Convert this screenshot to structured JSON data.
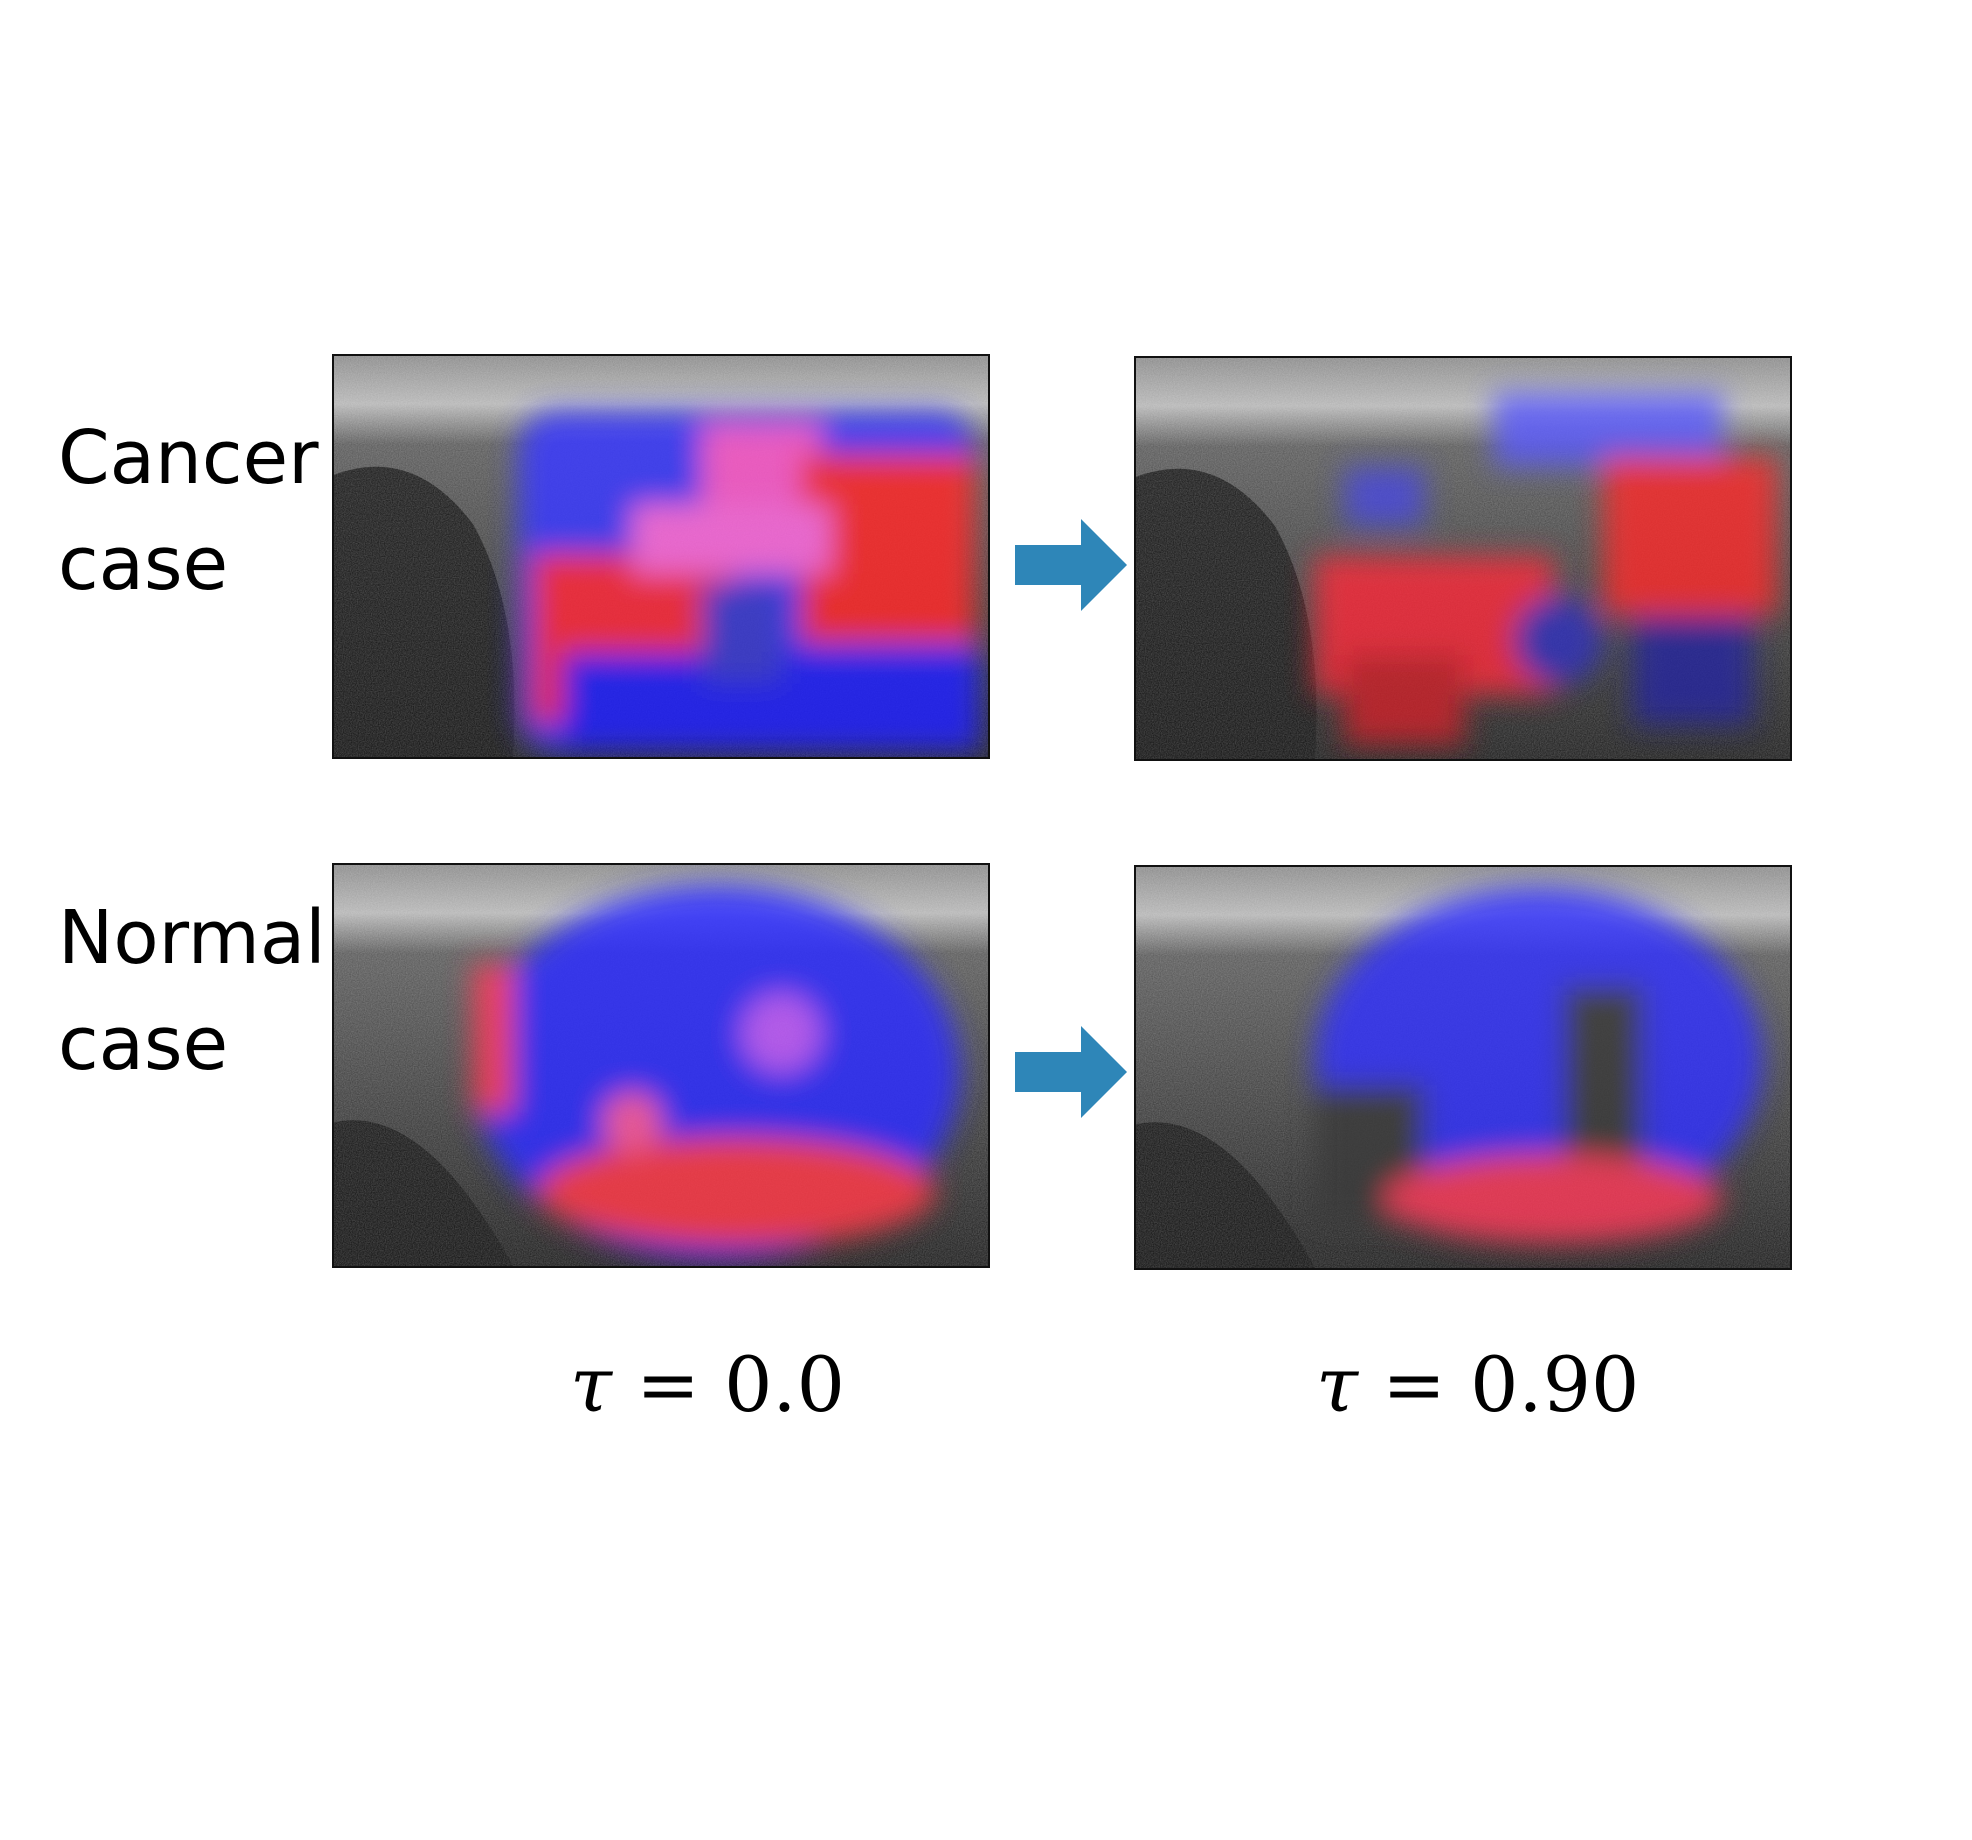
{
  "rows": [
    {
      "label_line1": "Cancer",
      "label_line2": "case"
    },
    {
      "label_line1": "Normal",
      "label_line2": "case"
    }
  ],
  "columns": [
    {
      "symbol": "τ",
      "equals": "=",
      "value": "0.0"
    },
    {
      "symbol": "τ",
      "equals": "=",
      "value": "0.90"
    }
  ],
  "colors": {
    "arrow": "#2E86B8",
    "heat_high": "#ff2a2a",
    "heat_low": "#2a2aff"
  }
}
